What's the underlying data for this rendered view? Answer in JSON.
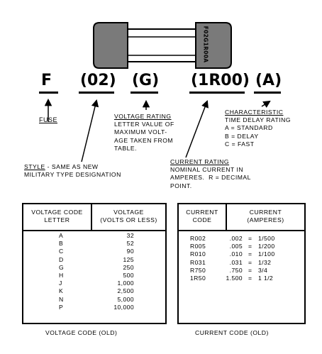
{
  "fuse_label": "F02G1R00A",
  "codes": {
    "f": "F",
    "style": "(02)",
    "voltage": "(G)",
    "current": "(1R00)",
    "characteristic": "(A)"
  },
  "annotations": {
    "fuse": "FUSE",
    "voltage_rating": {
      "title": "VOLTAGE RATING",
      "lines": [
        "LETTER VALUE OF",
        "MAXIMUM VOLT-",
        "AGE TAKEN FROM",
        "TABLE."
      ]
    },
    "characteristic": {
      "title": "CHARACTERISTIC",
      "lines": [
        "TIME DELAY RATING",
        "A = STANDARD",
        "B = DELAY",
        "C = FAST"
      ]
    },
    "style": {
      "title": "STYLE",
      "title_suffix": " - SAME AS NEW",
      "lines": [
        "MILITARY TYPE DESIGNATION"
      ]
    },
    "current_rating": {
      "title": "CURRENT RATING",
      "lines": [
        "NOMINAL CURRENT IN",
        "AMPERES.  R = DECIMAL",
        "POINT."
      ]
    }
  },
  "voltage_table": {
    "col1_header": [
      "VOLTAGE CODE",
      "LETTER"
    ],
    "col2_header": [
      "VOLTAGE",
      "(VOLTS OR LESS)"
    ],
    "rows": [
      {
        "code": "A",
        "value": "32"
      },
      {
        "code": "B",
        "value": "52"
      },
      {
        "code": "C",
        "value": "90"
      },
      {
        "code": "D",
        "value": "125"
      },
      {
        "code": "G",
        "value": "250"
      },
      {
        "code": "H",
        "value": "500"
      },
      {
        "code": "J",
        "value": "1,000"
      },
      {
        "code": "K",
        "value": "2,500"
      },
      {
        "code": "N",
        "value": "5,000"
      },
      {
        "code": "P",
        "value": "10,000"
      }
    ],
    "caption": "VOLTAGE CODE (OLD)"
  },
  "current_table": {
    "col1_header": [
      "CURRENT",
      "CODE"
    ],
    "col2_header": [
      "CURRENT",
      "(AMPERES)"
    ],
    "rows": [
      {
        "code": "R002",
        "decimal": ".002",
        "eq": "=",
        "fraction": "1/500"
      },
      {
        "code": "R005",
        "decimal": ".005",
        "eq": "=",
        "fraction": "1/200"
      },
      {
        "code": "R010",
        "decimal": ".010",
        "eq": "=",
        "fraction": "1/100"
      },
      {
        "code": "R031",
        "decimal": ".031",
        "eq": "=",
        "fraction": "1/32"
      },
      {
        "code": "R750",
        "decimal": ".750",
        "eq": "=",
        "fraction": "3/4"
      },
      {
        "code": "1R50",
        "decimal": "1.500",
        "eq": "=",
        "fraction": "1 1/2"
      }
    ],
    "caption": "CURRENT CODE (OLD)"
  }
}
